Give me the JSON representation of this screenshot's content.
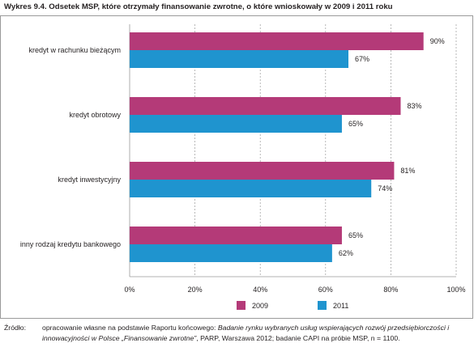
{
  "title": "Wykres 9.4. Odsetek MSP, które otrzymały finansowanie zwrotne, o które wnioskowały w 2009 i 2011 roku",
  "source": {
    "label": "Źródło:",
    "part1": "opracowanie własne na podstawie Raportu końcowego: ",
    "part2_italic": "Badanie rynku wybranych usług wspierających rozwój przedsiębiorczości i innowacyjności w Polsce „Finansowanie zwrotne”",
    "part3": ", PARP, Warszawa 2012; badanie CAPI na próbie MSP, n = 1100."
  },
  "colors": {
    "series2009": "#b43a78",
    "series2011": "#1f94cf",
    "grid": "#9a9a9a",
    "text": "#231f20"
  },
  "chart_data": {
    "type": "bar",
    "orientation": "horizontal",
    "title": "Wykres 9.4. Odsetek MSP, które otrzymały finansowanie zwrotne, o które wnioskowały w 2009 i 2011 roku",
    "categories": [
      "kredyt w rachunku bieżącym",
      "kredyt obrotowy",
      "kredyt inwestycyjny",
      "inny rodzaj kredytu bankowego"
    ],
    "series": [
      {
        "name": "2009",
        "values": [
          90,
          83,
          81,
          65
        ],
        "labels": [
          "90%",
          "83%",
          "81%",
          "65%"
        ]
      },
      {
        "name": "2011",
        "values": [
          67,
          65,
          74,
          62
        ],
        "labels": [
          "67%",
          "65%",
          "74%",
          "62%"
        ]
      }
    ],
    "xlim": [
      0,
      100
    ],
    "xticks": [
      0,
      20,
      40,
      60,
      80,
      100
    ],
    "xtick_labels": [
      "0%",
      "20%",
      "40%",
      "60%",
      "80%",
      "100%"
    ],
    "grid": true,
    "legend_position": "bottom"
  }
}
